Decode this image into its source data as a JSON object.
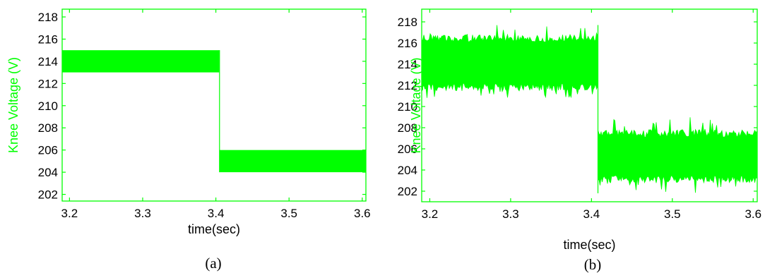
{
  "chart_data": [
    {
      "type": "area",
      "caption": "(a)",
      "xlabel": "time(sec)",
      "ylabel": "Knee Voltage (V)",
      "xlim": [
        3.19,
        3.605
      ],
      "ylim": [
        201.4,
        218.7
      ],
      "xticks": [
        "3.2",
        "3.3",
        "3.4",
        "3.5",
        "3.6"
      ],
      "yticks": [
        "202",
        "204",
        "206",
        "208",
        "210",
        "212",
        "214",
        "216",
        "218"
      ],
      "series": [
        {
          "segments": [
            {
              "x": [
                3.19,
                3.405
              ],
              "y_min": 213.0,
              "y_max": 215.0
            },
            {
              "x": [
                3.405,
                3.605
              ],
              "y_min": 204.0,
              "y_max": 206.0
            }
          ]
        }
      ],
      "grid": false,
      "colors": {
        "signal": "#00ff00",
        "axis": "#00ff00",
        "tick_text": "#000000",
        "label_text": "#00ff00"
      }
    },
    {
      "type": "area",
      "caption": "(b)",
      "xlabel": "time(sec)",
      "ylabel": "Knee Voltage (V)",
      "xlim": [
        3.19,
        3.605
      ],
      "ylim": [
        201.0,
        219.2
      ],
      "xticks": [
        "3.2",
        "3.3",
        "3.4",
        "3.5",
        "3.6"
      ],
      "yticks": [
        "202",
        "204",
        "206",
        "208",
        "210",
        "212",
        "214",
        "216",
        "218"
      ],
      "series": [
        {
          "segments": [
            {
              "x": [
                3.19,
                3.408
              ],
              "y_min": 211.5,
              "y_max": 216.8,
              "y_peak_min": 210.8,
              "y_peak_max": 217.7
            },
            {
              "x": [
                3.408,
                3.605
              ],
              "y_min": 202.8,
              "y_max": 207.8,
              "y_peak_min": 201.8,
              "y_peak_max": 209.0
            }
          ]
        }
      ],
      "grid": false,
      "colors": {
        "signal": "#00ff00",
        "axis": "#00ff00",
        "tick_text": "#000000",
        "label_text": "#00ff00"
      }
    }
  ]
}
